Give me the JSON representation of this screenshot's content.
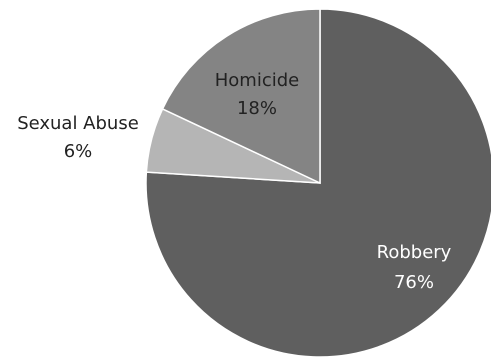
{
  "chart_data": {
    "type": "pie",
    "categories": [
      "Robbery",
      "Sexual Abuse",
      "Homicide"
    ],
    "values": [
      76,
      6,
      18
    ],
    "value_labels": [
      "76%",
      "6%",
      "18%"
    ],
    "colors": [
      "#5f5f5f",
      "#b5b5b5",
      "#848484"
    ],
    "label_colors": [
      "#ffffff",
      "#222222",
      "#222222"
    ],
    "start_angle_deg": 0,
    "direction": "clockwise",
    "legend": "none"
  }
}
